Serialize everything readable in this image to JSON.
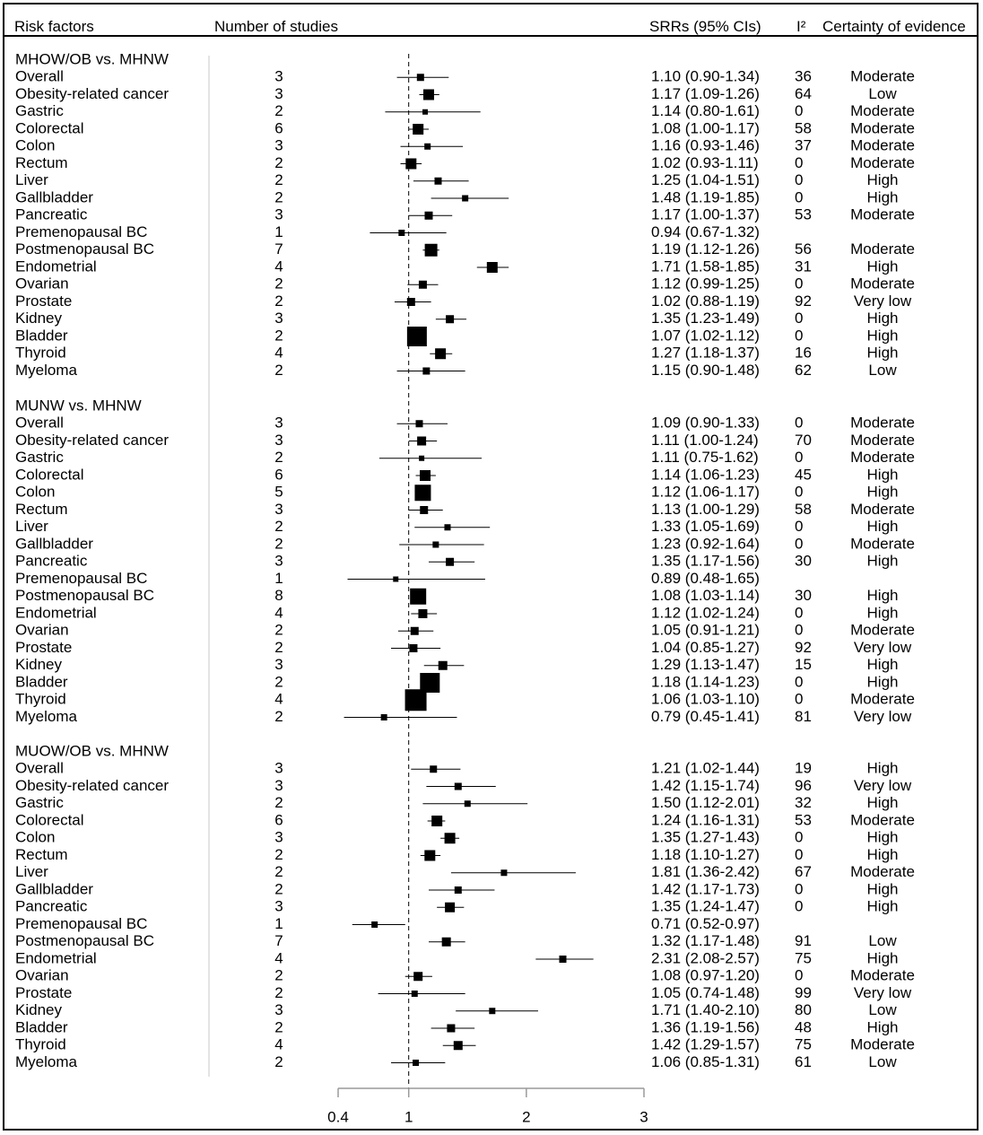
{
  "headers": {
    "risk_factors": "Risk factors",
    "number_of_studies": "Number of studies",
    "srrs": "SRRs (95% CIs)",
    "i2": "I²",
    "certainty": "Certainty of evidence"
  },
  "colors": {
    "ink": "#000000",
    "background": "#ffffff",
    "axis_light": "#9a9a9a"
  },
  "chart_data": {
    "type": "forest",
    "xaxis": {
      "ticks": [
        0.4,
        1,
        2,
        3
      ],
      "tick_labels": [
        "0.4",
        "1",
        "2",
        "3"
      ],
      "reference_line": 1,
      "reference_style": "dashed",
      "range": [
        0.4,
        3
      ]
    },
    "groups": [
      {
        "title": "MHOW/OB vs. MHNW",
        "rows": [
          {
            "label": "Overall",
            "n": "3",
            "srr": 1.1,
            "lo": 0.9,
            "hi": 1.34,
            "text": "1.10 (0.90-1.34)",
            "i2": "36",
            "certainty": "Moderate",
            "w": 2
          },
          {
            "label": "Obesity-related cancer",
            "n": "3",
            "srr": 1.17,
            "lo": 1.09,
            "hi": 1.26,
            "text": "1.17 (1.09-1.26)",
            "i2": "64",
            "certainty": "Low",
            "w": 4
          },
          {
            "label": "Gastric",
            "n": "2",
            "srr": 1.14,
            "lo": 0.8,
            "hi": 1.61,
            "text": "1.14 (0.80-1.61)",
            "i2": "0",
            "certainty": "Moderate",
            "w": 1
          },
          {
            "label": "Colorectal",
            "n": "6",
            "srr": 1.08,
            "lo": 1.0,
            "hi": 1.17,
            "text": "1.08 (1.00-1.17)",
            "i2": "58",
            "certainty": "Moderate",
            "w": 4
          },
          {
            "label": "Colon",
            "n": "3",
            "srr": 1.16,
            "lo": 0.93,
            "hi": 1.46,
            "text": "1.16 (0.93-1.46)",
            "i2": "37",
            "certainty": "Moderate",
            "w": 1.5
          },
          {
            "label": "Rectum",
            "n": "2",
            "srr": 1.02,
            "lo": 0.93,
            "hi": 1.11,
            "text": "1.02 (0.93-1.11)",
            "i2": "0",
            "certainty": "Moderate",
            "w": 4
          },
          {
            "label": "Liver",
            "n": "2",
            "srr": 1.25,
            "lo": 1.04,
            "hi": 1.51,
            "text": "1.25 (1.04-1.51)",
            "i2": "0",
            "certainty": "High",
            "w": 2
          },
          {
            "label": "Gallbladder",
            "n": "2",
            "srr": 1.48,
            "lo": 1.19,
            "hi": 1.85,
            "text": "1.48 (1.19-1.85)",
            "i2": "0",
            "certainty": "High",
            "w": 1.5
          },
          {
            "label": "Pancreatic",
            "n": "3",
            "srr": 1.17,
            "lo": 1.0,
            "hi": 1.37,
            "text": "1.17 (1.00-1.37)",
            "i2": "53",
            "certainty": "Moderate",
            "w": 2.5
          },
          {
            "label": "Premenopausal BC",
            "n": "1",
            "srr": 0.94,
            "lo": 0.67,
            "hi": 1.32,
            "text": "0.94 (0.67-1.32)",
            "i2": "",
            "certainty": "",
            "w": 1.5
          },
          {
            "label": "Postmenopausal BC",
            "n": "7",
            "srr": 1.19,
            "lo": 1.12,
            "hi": 1.26,
            "text": "1.19 (1.12-1.26)",
            "i2": "56",
            "certainty": "Moderate",
            "w": 5
          },
          {
            "label": "Endometrial",
            "n": "4",
            "srr": 1.71,
            "lo": 1.58,
            "hi": 1.85,
            "text": "1.71 (1.58-1.85)",
            "i2": "31",
            "certainty": "High",
            "w": 4
          },
          {
            "label": "Ovarian",
            "n": "2",
            "srr": 1.12,
            "lo": 0.99,
            "hi": 1.25,
            "text": "1.12 (0.99-1.25)",
            "i2": "0",
            "certainty": "Moderate",
            "w": 2.5
          },
          {
            "label": "Prostate",
            "n": "2",
            "srr": 1.02,
            "lo": 0.88,
            "hi": 1.19,
            "text": "1.02 (0.88-1.19)",
            "i2": "92",
            "certainty": "Very low",
            "w": 2.5
          },
          {
            "label": "Kidney",
            "n": "3",
            "srr": 1.35,
            "lo": 1.23,
            "hi": 1.49,
            "text": "1.35 (1.23-1.49)",
            "i2": "0",
            "certainty": "High",
            "w": 2.5
          },
          {
            "label": "Bladder",
            "n": "2",
            "srr": 1.07,
            "lo": 1.02,
            "hi": 1.12,
            "text": "1.07 (1.02-1.12)",
            "i2": "0",
            "certainty": "High",
            "w": 9
          },
          {
            "label": "Thyroid",
            "n": "4",
            "srr": 1.27,
            "lo": 1.18,
            "hi": 1.37,
            "text": "1.27 (1.18-1.37)",
            "i2": "16",
            "certainty": "High",
            "w": 4
          },
          {
            "label": "Myeloma",
            "n": "2",
            "srr": 1.15,
            "lo": 0.9,
            "hi": 1.48,
            "text": "1.15 (0.90-1.48)",
            "i2": "62",
            "certainty": "Low",
            "w": 2
          }
        ]
      },
      {
        "title": "MUNW vs. MHNW",
        "rows": [
          {
            "label": "Overall",
            "n": "3",
            "srr": 1.09,
            "lo": 0.9,
            "hi": 1.33,
            "text": "1.09 (0.90-1.33)",
            "i2": "0",
            "certainty": "Moderate",
            "w": 2
          },
          {
            "label": "Obesity-related cancer",
            "n": "3",
            "srr": 1.11,
            "lo": 1.0,
            "hi": 1.24,
            "text": "1.11 (1.00-1.24)",
            "i2": "70",
            "certainty": "Moderate",
            "w": 3
          },
          {
            "label": "Gastric",
            "n": "2",
            "srr": 1.11,
            "lo": 0.75,
            "hi": 1.62,
            "text": "1.11 (0.75-1.62)",
            "i2": "0",
            "certainty": "Moderate",
            "w": 1
          },
          {
            "label": "Colorectal",
            "n": "6",
            "srr": 1.14,
            "lo": 1.06,
            "hi": 1.23,
            "text": "1.14 (1.06-1.23)",
            "i2": "45",
            "certainty": "High",
            "w": 4
          },
          {
            "label": "Colon",
            "n": "5",
            "srr": 1.12,
            "lo": 1.06,
            "hi": 1.17,
            "text": "1.12 (1.06-1.17)",
            "i2": "0",
            "certainty": "High",
            "w": 7
          },
          {
            "label": "Rectum",
            "n": "3",
            "srr": 1.13,
            "lo": 1.0,
            "hi": 1.29,
            "text": "1.13 (1.00-1.29)",
            "i2": "58",
            "certainty": "Moderate",
            "w": 2.5
          },
          {
            "label": "Liver",
            "n": "2",
            "srr": 1.33,
            "lo": 1.05,
            "hi": 1.69,
            "text": "1.33 (1.05-1.69)",
            "i2": "0",
            "certainty": "High",
            "w": 1.5
          },
          {
            "label": "Gallbladder",
            "n": "2",
            "srr": 1.23,
            "lo": 0.92,
            "hi": 1.64,
            "text": "1.23 (0.92-1.64)",
            "i2": "0",
            "certainty": "Moderate",
            "w": 1.5
          },
          {
            "label": "Pancreatic",
            "n": "3",
            "srr": 1.35,
            "lo": 1.17,
            "hi": 1.56,
            "text": "1.35 (1.17-1.56)",
            "i2": "30",
            "certainty": "High",
            "w": 2.5
          },
          {
            "label": "Premenopausal BC",
            "n": "1",
            "srr": 0.89,
            "lo": 0.48,
            "hi": 1.65,
            "text": "0.89 (0.48-1.65)",
            "i2": "",
            "certainty": "",
            "w": 1
          },
          {
            "label": "Postmenopausal BC",
            "n": "8",
            "srr": 1.08,
            "lo": 1.03,
            "hi": 1.14,
            "text": "1.08 (1.03-1.14)",
            "i2": "30",
            "certainty": "High",
            "w": 7
          },
          {
            "label": "Endometrial",
            "n": "4",
            "srr": 1.12,
            "lo": 1.02,
            "hi": 1.24,
            "text": "1.12 (1.02-1.24)",
            "i2": "0",
            "certainty": "High",
            "w": 3
          },
          {
            "label": "Ovarian",
            "n": "2",
            "srr": 1.05,
            "lo": 0.91,
            "hi": 1.21,
            "text": "1.05 (0.91-1.21)",
            "i2": "0",
            "certainty": "Moderate",
            "w": 2.5
          },
          {
            "label": "Prostate",
            "n": "2",
            "srr": 1.04,
            "lo": 0.85,
            "hi": 1.27,
            "text": "1.04 (0.85-1.27)",
            "i2": "92",
            "certainty": "Very low",
            "w": 2.5
          },
          {
            "label": "Kidney",
            "n": "3",
            "srr": 1.29,
            "lo": 1.13,
            "hi": 1.47,
            "text": "1.29 (1.13-1.47)",
            "i2": "15",
            "certainty": "High",
            "w": 3
          },
          {
            "label": "Bladder",
            "n": "2",
            "srr": 1.18,
            "lo": 1.14,
            "hi": 1.23,
            "text": "1.18 (1.14-1.23)",
            "i2": "0",
            "certainty": "High",
            "w": 9
          },
          {
            "label": "Thyroid",
            "n": "4",
            "srr": 1.06,
            "lo": 1.03,
            "hi": 1.1,
            "text": "1.06 (1.03-1.10)",
            "i2": "0",
            "certainty": "Moderate",
            "w": 10
          },
          {
            "label": "Myeloma",
            "n": "2",
            "srr": 0.79,
            "lo": 0.45,
            "hi": 1.41,
            "text": "0.79 (0.45-1.41)",
            "i2": "81",
            "certainty": "Very low",
            "w": 1.5
          }
        ]
      },
      {
        "title": "MUOW/OB vs. MHNW",
        "rows": [
          {
            "label": "Overall",
            "n": "3",
            "srr": 1.21,
            "lo": 1.02,
            "hi": 1.44,
            "text": "1.21 (1.02-1.44)",
            "i2": "19",
            "certainty": "High",
            "w": 2
          },
          {
            "label": "Obesity-related cancer",
            "n": "3",
            "srr": 1.42,
            "lo": 1.15,
            "hi": 1.74,
            "text": "1.42 (1.15-1.74)",
            "i2": "96",
            "certainty": "Very low",
            "w": 2
          },
          {
            "label": "Gastric",
            "n": "2",
            "srr": 1.5,
            "lo": 1.12,
            "hi": 2.01,
            "text": "1.50 (1.12-2.01)",
            "i2": "32",
            "certainty": "High",
            "w": 1.5
          },
          {
            "label": "Colorectal",
            "n": "6",
            "srr": 1.24,
            "lo": 1.16,
            "hi": 1.31,
            "text": "1.24 (1.16-1.31)",
            "i2": "53",
            "certainty": "Moderate",
            "w": 4
          },
          {
            "label": "Colon",
            "n": "3",
            "srr": 1.35,
            "lo": 1.27,
            "hi": 1.43,
            "text": "1.35 (1.27-1.43)",
            "i2": "0",
            "certainty": "High",
            "w": 4
          },
          {
            "label": "Rectum",
            "n": "2",
            "srr": 1.18,
            "lo": 1.1,
            "hi": 1.27,
            "text": "1.18 (1.10-1.27)",
            "i2": "0",
            "certainty": "High",
            "w": 4
          },
          {
            "label": "Liver",
            "n": "2",
            "srr": 1.81,
            "lo": 1.36,
            "hi": 2.42,
            "text": "1.81 (1.36-2.42)",
            "i2": "67",
            "certainty": "Moderate",
            "w": 1.5
          },
          {
            "label": "Gallbladder",
            "n": "2",
            "srr": 1.42,
            "lo": 1.17,
            "hi": 1.73,
            "text": "1.42 (1.17-1.73)",
            "i2": "0",
            "certainty": "High",
            "w": 2
          },
          {
            "label": "Pancreatic",
            "n": "3",
            "srr": 1.35,
            "lo": 1.24,
            "hi": 1.47,
            "text": "1.35 (1.24-1.47)",
            "i2": "0",
            "certainty": "High",
            "w": 3.5
          },
          {
            "label": "Premenopausal BC",
            "n": "1",
            "srr": 0.71,
            "lo": 0.52,
            "hi": 0.97,
            "text": "0.71 (0.52-0.97)",
            "i2": "",
            "certainty": "",
            "w": 1.5
          },
          {
            "label": "Postmenopausal BC",
            "n": "7",
            "srr": 1.32,
            "lo": 1.17,
            "hi": 1.48,
            "text": "1.32 (1.17-1.48)",
            "i2": "91",
            "certainty": "Low",
            "w": 3
          },
          {
            "label": "Endometrial",
            "n": "4",
            "srr": 2.31,
            "lo": 2.08,
            "hi": 2.57,
            "text": "2.31 (2.08-2.57)",
            "i2": "75",
            "certainty": "High",
            "w": 2
          },
          {
            "label": "Ovarian",
            "n": "2",
            "srr": 1.08,
            "lo": 0.97,
            "hi": 1.2,
            "text": "1.08 (0.97-1.20)",
            "i2": "0",
            "certainty": "Moderate",
            "w": 3
          },
          {
            "label": "Prostate",
            "n": "2",
            "srr": 1.05,
            "lo": 0.74,
            "hi": 1.48,
            "text": "1.05 (0.74-1.48)",
            "i2": "99",
            "certainty": "Very low",
            "w": 1.5
          },
          {
            "label": "Kidney",
            "n": "3",
            "srr": 1.71,
            "lo": 1.4,
            "hi": 2.1,
            "text": "1.71 (1.40-2.10)",
            "i2": "80",
            "certainty": "Low",
            "w": 1.5
          },
          {
            "label": "Bladder",
            "n": "2",
            "srr": 1.36,
            "lo": 1.19,
            "hi": 1.56,
            "text": "1.36 (1.19-1.56)",
            "i2": "48",
            "certainty": "High",
            "w": 2.5
          },
          {
            "label": "Thyroid",
            "n": "4",
            "srr": 1.42,
            "lo": 1.29,
            "hi": 1.57,
            "text": "1.42 (1.29-1.57)",
            "i2": "75",
            "certainty": "Moderate",
            "w": 3
          },
          {
            "label": "Myeloma",
            "n": "2",
            "srr": 1.06,
            "lo": 0.85,
            "hi": 1.31,
            "text": "1.06 (0.85-1.31)",
            "i2": "61",
            "certainty": "Low",
            "w": 1.5
          }
        ]
      }
    ]
  }
}
